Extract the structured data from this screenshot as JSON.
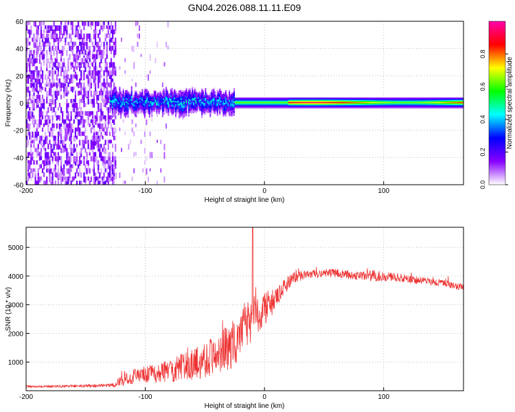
{
  "chart_data": [
    {
      "type": "heatmap",
      "title": "GN04.2026.088.11.11.E09",
      "xlabel": "Height of straight line (km)",
      "ylabel": "Frequency (Hz)",
      "xlim": [
        -200,
        167
      ],
      "ylim": [
        -60,
        60
      ],
      "xticks": [
        -200,
        -100,
        0,
        100
      ],
      "yticks": [
        -60,
        -40,
        -20,
        0,
        20,
        40,
        60
      ],
      "grid": true,
      "colorbar": {
        "label": "Normalized spectral amplitude",
        "range": [
          0,
          1
        ],
        "ticks": [
          "0.0",
          "0.2",
          "0.4",
          "0.6",
          "0.8"
        ],
        "tick_values": [
          0,
          0.2,
          0.4,
          0.6,
          0.8
        ],
        "colors": [
          "#ffffff",
          "#8800ff",
          "#0000ff",
          "#00ffff",
          "#00ff00",
          "#ffff00",
          "#ff0000",
          "#ff00aa"
        ]
      },
      "regions": [
        {
          "name": "noise",
          "x_range": [
            -200,
            -125
          ],
          "freq_spread": 60,
          "amplitude": 0.1
        },
        {
          "name": "sparse-noise",
          "x_range": [
            -125,
            -80
          ],
          "freq_spread": 60,
          "amplitude": 0.04
        },
        {
          "name": "band-turbulent",
          "x_range": [
            -130,
            -25
          ],
          "center_hz": 0,
          "half_width_hz": 8,
          "amplitude": 0.35
        },
        {
          "name": "band-stable",
          "x_range": [
            -25,
            167
          ],
          "center_hz": 0,
          "half_width_hz": 4,
          "amplitude": 0.7
        }
      ]
    },
    {
      "type": "line",
      "title": "",
      "xlabel": "Height of straight line (km)",
      "ylabel": "SNR (10 * v/v)",
      "xlim": [
        -200,
        167
      ],
      "ylim": [
        0,
        5700
      ],
      "xticks": [
        -200,
        -100,
        0,
        100
      ],
      "yticks": [
        1000,
        2000,
        3000,
        4000,
        5000
      ],
      "grid": true,
      "series": [
        {
          "name": "SNR",
          "color": "#ee3333",
          "x": [
            -200,
            -180,
            -160,
            -140,
            -125,
            -120,
            -110,
            -100,
            -90,
            -80,
            -70,
            -60,
            -50,
            -40,
            -30,
            -20,
            -15,
            -10,
            -5,
            0,
            5,
            10,
            15,
            20,
            25,
            30,
            40,
            50,
            60,
            70,
            80,
            90,
            100,
            110,
            120,
            130,
            140,
            150,
            160,
            167
          ],
          "values": [
            150,
            150,
            160,
            170,
            200,
            400,
            500,
            550,
            600,
            700,
            800,
            900,
            1100,
            1300,
            1500,
            1900,
            2300,
            2500,
            2700,
            2900,
            3000,
            3200,
            3500,
            3800,
            3950,
            4000,
            4050,
            4100,
            4100,
            4050,
            4000,
            4000,
            4000,
            3950,
            3900,
            3850,
            3800,
            3750,
            3650,
            3600
          ],
          "noise": [
            40,
            40,
            40,
            50,
            70,
            250,
            300,
            300,
            350,
            400,
            500,
            550,
            650,
            700,
            800,
            900,
            900,
            800,
            700,
            600,
            500,
            400,
            300,
            250,
            200,
            180,
            150,
            150,
            150,
            150,
            150,
            200,
            180,
            150,
            150,
            140,
            130,
            120,
            120,
            120
          ],
          "peak": {
            "x": -10,
            "value": 5700
          }
        }
      ]
    }
  ]
}
